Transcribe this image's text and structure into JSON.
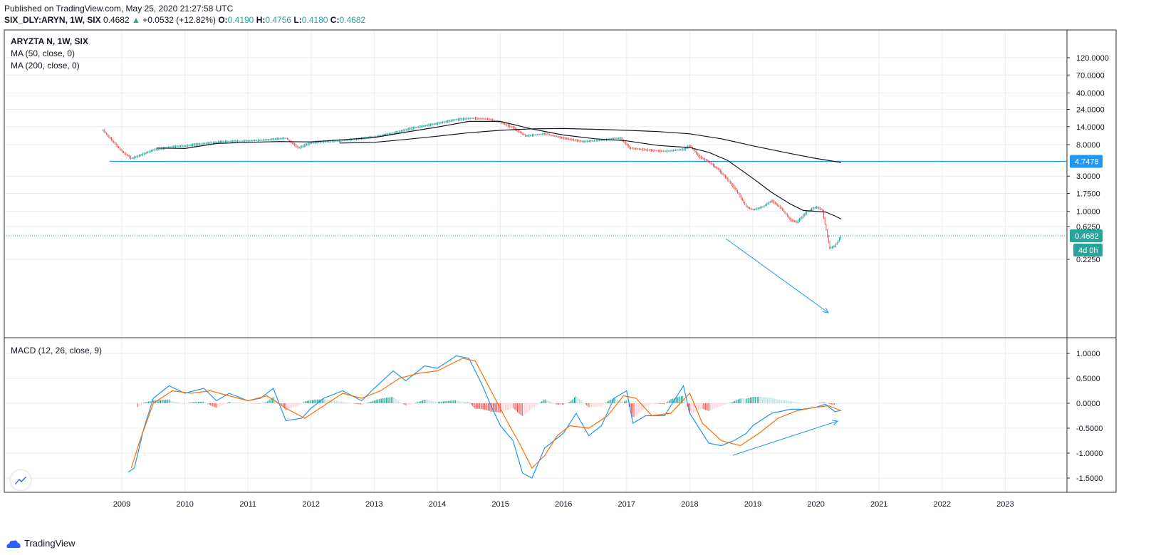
{
  "header": {
    "published": "Published on TradingView.com, May 25, 2020 21:27:58 UTC",
    "symbol": "SIX_DLY:ARYN, 1W, SIX",
    "last": "0.4682",
    "change_arrow": "▲",
    "change": "+0.0532 (+12.82%)",
    "o_label": "O:",
    "o_value": "0.4190",
    "h_label": "H:",
    "h_value": "0.4756",
    "l_label": "L:",
    "l_value": "0.4180",
    "c_label": "C:",
    "c_value": "0.4682"
  },
  "main_pane": {
    "title": "ARYZTA N, 1W, SIX",
    "indicator1": "MA (50, close, 0)",
    "indicator2": "MA (200, close, 0)",
    "price_tag": "0.4682",
    "level_tag": "4.7478",
    "countdown": "4d 0h"
  },
  "macd_pane": {
    "title": "MACD (12, 26, close, 9)"
  },
  "footer": {
    "brand": "TradingView"
  },
  "colors": {
    "up": "#26a69a",
    "down": "#ef5350",
    "blue": "#2196f3",
    "orange": "#ff6d00",
    "ma": "#131722",
    "grid": "#e9eef5",
    "accent": "#2962ff"
  },
  "chart_data": [
    {
      "type": "line",
      "title": "ARYZTA N, 1W, SIX",
      "scale": "log",
      "y_ticks": [
        120,
        70,
        40,
        24,
        14,
        8,
        4.7478,
        3,
        1.75,
        1,
        0.625,
        0.4682,
        0.225
      ],
      "y_tick_labels": [
        "120.0000",
        "70.0000",
        "40.0000",
        "24.0000",
        "14.0000",
        "8.0000",
        "3.0000",
        "1.7500",
        "1.0000",
        "0.6250",
        "0.2250"
      ],
      "x_ticks": [
        "2009",
        "2010",
        "2011",
        "2012",
        "2013",
        "2014",
        "2015",
        "2016",
        "2017",
        "2018",
        "2019",
        "2020",
        "2021",
        "2022",
        "2023"
      ],
      "series": [
        {
          "name": "ARYZTA N",
          "x": [
            2008.7,
            2008.85,
            2009.0,
            2009.15,
            2009.3,
            2009.5,
            2009.8,
            2010.0,
            2010.3,
            2010.6,
            2011.0,
            2011.3,
            2011.6,
            2011.8,
            2012.0,
            2012.3,
            2012.6,
            2013.0,
            2013.3,
            2013.6,
            2014.0,
            2014.3,
            2014.55,
            2014.8,
            2015.0,
            2015.2,
            2015.4,
            2015.7,
            2016.0,
            2016.3,
            2016.6,
            2016.9,
            2017.05,
            2017.3,
            2017.6,
            2017.9,
            2018.0,
            2018.15,
            2018.3,
            2018.45,
            2018.6,
            2018.75,
            2018.9,
            2019.0,
            2019.15,
            2019.3,
            2019.45,
            2019.6,
            2019.7,
            2019.85,
            2020.0,
            2020.1,
            2020.15,
            2020.22,
            2020.3,
            2020.4
          ],
          "values": [
            12.5,
            9.0,
            6.5,
            5.2,
            5.8,
            6.8,
            7.5,
            7.7,
            8.3,
            8.8,
            9.0,
            9.3,
            9.8,
            7.2,
            8.6,
            8.9,
            9.3,
            10.2,
            11.5,
            13.4,
            15.5,
            17.5,
            18.2,
            17.8,
            16.0,
            13.5,
            10.5,
            11.2,
            9.8,
            8.8,
            9.2,
            9.8,
            7.2,
            6.8,
            6.5,
            6.9,
            7.8,
            5.5,
            4.7,
            3.7,
            2.7,
            1.85,
            1.15,
            1.05,
            1.15,
            1.4,
            1.1,
            0.76,
            0.72,
            0.98,
            1.15,
            1.05,
            0.62,
            0.32,
            0.34,
            0.4682
          ]
        },
        {
          "name": "MA (50, close, 0)",
          "x": [
            2009.55,
            2010.0,
            2010.5,
            2011.0,
            2011.5,
            2012.0,
            2012.5,
            2013.0,
            2013.5,
            2014.0,
            2014.5,
            2015.0,
            2015.5,
            2016.0,
            2016.5,
            2017.0,
            2017.5,
            2018.0,
            2018.3,
            2018.6,
            2019.0,
            2019.3,
            2019.6,
            2019.8,
            2020.0,
            2020.15,
            2020.3,
            2020.4
          ],
          "values": [
            7.2,
            7.1,
            8.3,
            8.6,
            8.8,
            8.7,
            9.3,
            10.0,
            11.8,
            13.8,
            16.5,
            16.5,
            13.0,
            10.8,
            9.6,
            9.0,
            7.8,
            7.3,
            6.3,
            4.9,
            2.8,
            1.8,
            1.25,
            1.03,
            1.0,
            0.98,
            0.87,
            0.79
          ]
        },
        {
          "name": "MA (200, close, 0)",
          "x": [
            2012.45,
            2013.0,
            2013.5,
            2014.0,
            2014.5,
            2015.0,
            2015.5,
            2016.0,
            2016.5,
            2017.0,
            2017.5,
            2018.0,
            2018.5,
            2019.0,
            2019.5,
            2020.0,
            2020.4
          ],
          "values": [
            8.4,
            8.6,
            9.4,
            10.4,
            11.6,
            12.5,
            13.1,
            13.2,
            12.9,
            12.5,
            12.0,
            11.2,
            9.6,
            7.7,
            6.3,
            5.2,
            4.6
          ]
        }
      ]
    },
    {
      "type": "line",
      "title": "MACD (12, 26, close, 9)",
      "y_ticks": [
        1.0,
        0.5,
        0.0,
        -0.5,
        -1.0,
        -1.5
      ],
      "y_tick_labels": [
        "1.0000",
        "0.5000",
        "0.0000",
        "-0.5000",
        "-1.0000",
        "-1.5000"
      ],
      "series": [
        {
          "name": "MACD",
          "x": [
            2009.1,
            2009.2,
            2009.35,
            2009.5,
            2009.75,
            2010.0,
            2010.3,
            2010.5,
            2010.7,
            2011.0,
            2011.2,
            2011.4,
            2011.6,
            2011.85,
            2012.0,
            2012.2,
            2012.5,
            2012.8,
            2013.0,
            2013.3,
            2013.5,
            2013.8,
            2014.0,
            2014.3,
            2014.5,
            2014.7,
            2014.85,
            2015.0,
            2015.2,
            2015.35,
            2015.5,
            2015.7,
            2015.9,
            2016.0,
            2016.2,
            2016.4,
            2016.6,
            2016.8,
            2017.0,
            2017.1,
            2017.3,
            2017.6,
            2017.9,
            2018.0,
            2018.15,
            2018.3,
            2018.5,
            2018.7,
            2018.9,
            2019.0,
            2019.3,
            2019.6,
            2019.8,
            2020.0,
            2020.15,
            2020.3,
            2020.4
          ],
          "values": [
            -1.38,
            -1.3,
            -0.5,
            0.1,
            0.35,
            0.2,
            0.3,
            0.05,
            0.2,
            0.05,
            0.1,
            0.3,
            -0.35,
            -0.3,
            -0.1,
            0.1,
            0.25,
            0.05,
            0.3,
            0.65,
            0.45,
            0.75,
            0.7,
            0.95,
            0.9,
            0.4,
            -0.05,
            -0.45,
            -0.75,
            -1.4,
            -1.5,
            -0.9,
            -0.7,
            -0.6,
            -0.2,
            -0.65,
            -0.45,
            0.1,
            0.25,
            -0.4,
            -0.25,
            -0.25,
            0.35,
            -0.2,
            -0.5,
            -0.8,
            -0.85,
            -0.75,
            -0.6,
            -0.45,
            -0.2,
            -0.12,
            -0.12,
            -0.08,
            -0.02,
            -0.17,
            -0.14
          ]
        },
        {
          "name": "Signal",
          "x": [
            2009.15,
            2009.3,
            2009.5,
            2009.8,
            2010.1,
            2010.4,
            2010.7,
            2011.0,
            2011.3,
            2011.6,
            2011.9,
            2012.2,
            2012.5,
            2012.8,
            2013.1,
            2013.4,
            2013.7,
            2014.0,
            2014.4,
            2014.6,
            2014.85,
            2015.1,
            2015.3,
            2015.5,
            2015.7,
            2015.9,
            2016.1,
            2016.4,
            2016.7,
            2016.95,
            2017.15,
            2017.4,
            2017.7,
            2018.0,
            2018.2,
            2018.5,
            2018.8,
            2019.1,
            2019.4,
            2019.7,
            2020.0,
            2020.2,
            2020.4
          ],
          "values": [
            -1.3,
            -0.7,
            0.0,
            0.25,
            0.2,
            0.25,
            0.15,
            0.05,
            0.15,
            -0.1,
            -0.3,
            -0.05,
            0.2,
            0.1,
            0.25,
            0.5,
            0.6,
            0.65,
            0.9,
            0.85,
            0.25,
            -0.35,
            -0.8,
            -1.3,
            -1.05,
            -0.65,
            -0.45,
            -0.5,
            -0.25,
            0.15,
            0.1,
            -0.25,
            -0.2,
            0.2,
            -0.4,
            -0.75,
            -0.85,
            -0.6,
            -0.3,
            -0.15,
            -0.08,
            -0.05,
            -0.15
          ]
        }
      ]
    }
  ]
}
